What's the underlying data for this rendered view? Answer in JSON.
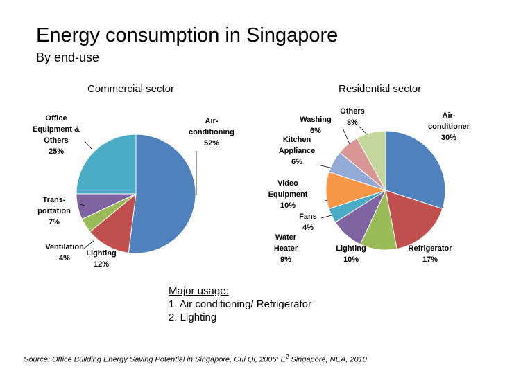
{
  "title": "Energy consumption in Singapore",
  "subtitle": "By end-use",
  "chart_data": [
    {
      "type": "pie",
      "title": "Commercial sector",
      "slices": [
        {
          "label": [
            "Air-",
            "conditioning"
          ],
          "pct": "52%",
          "value": 52,
          "color": "#4f81bd"
        },
        {
          "label": [
            "Lighting"
          ],
          "pct": "12%",
          "value": 12,
          "color": "#c0504d"
        },
        {
          "label": [
            "Ventilation"
          ],
          "pct": "4%",
          "value": 4,
          "color": "#9bbb59"
        },
        {
          "label": [
            "Trans-",
            "portation"
          ],
          "pct": "7%",
          "value": 7,
          "color": "#8064a2"
        },
        {
          "label": [
            "Office",
            "Equipment &",
            "Others"
          ],
          "pct": "25%",
          "value": 25,
          "color": "#4bacc6"
        }
      ]
    },
    {
      "type": "pie",
      "title": "Residential sector",
      "slices": [
        {
          "label": [
            "Air-",
            "conditioner"
          ],
          "pct": "30%",
          "value": 30,
          "color": "#4f81bd"
        },
        {
          "label": [
            "Refrigerator"
          ],
          "pct": "17%",
          "value": 17,
          "color": "#c0504d"
        },
        {
          "label": [
            "Lighting"
          ],
          "pct": "10%",
          "value": 10,
          "color": "#9bbb59"
        },
        {
          "label": [
            "Water",
            "Heater"
          ],
          "pct": "9%",
          "value": 9,
          "color": "#8064a2"
        },
        {
          "label": [
            "Fans"
          ],
          "pct": "4%",
          "value": 4,
          "color": "#4bacc6"
        },
        {
          "label": [
            "Video",
            "Equipment"
          ],
          "pct": "10%",
          "value": 10,
          "color": "#f79646"
        },
        {
          "label": [
            "Kitchen",
            "Appliance"
          ],
          "pct": "6%",
          "value": 6,
          "color": "#93a9d6"
        },
        {
          "label": [
            "Washing"
          ],
          "pct": "6%",
          "value": 6,
          "color": "#d99694"
        },
        {
          "label": [
            "Others"
          ],
          "pct": "8%",
          "value": 8,
          "color": "#c3d69b"
        }
      ]
    }
  ],
  "major_usage": {
    "title": "Major usage:",
    "items": [
      "1.  Air conditioning/ Refrigerator",
      "2.  Lighting"
    ]
  },
  "source": "Source: Office Building Energy Saving Potential in Singapore, Cui Qi, 2006; E2 Singapore, NEA, 2010"
}
